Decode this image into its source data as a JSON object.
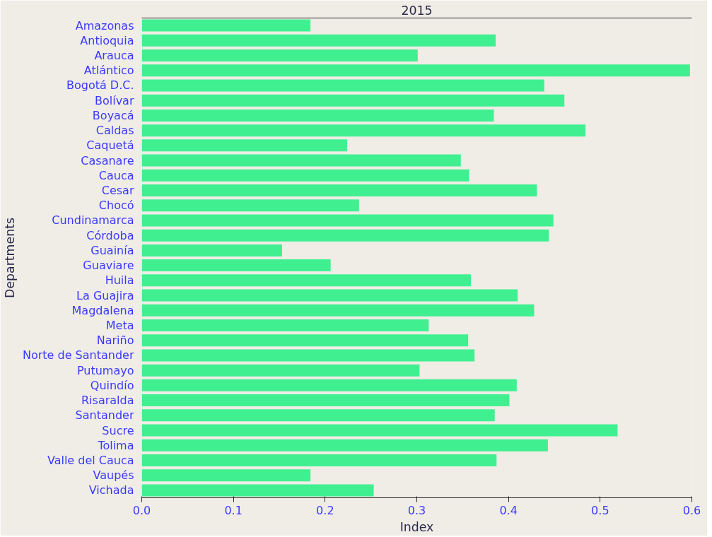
{
  "chart_data": {
    "type": "bar",
    "orientation": "horizontal",
    "title": "2015",
    "xlabel": "Index",
    "ylabel": "Departments",
    "categories": [
      "Amazonas",
      "Antioquia",
      "Arauca",
      "Atlántico",
      "Bogotá D.C.",
      "Bolívar",
      "Boyacá",
      "Caldas",
      "Caquetá",
      "Casanare",
      "Cauca",
      "Cesar",
      "Chocó",
      "Cundinamarca",
      "Córdoba",
      "Guainía",
      "Guaviare",
      "Huila",
      "La Guajira",
      "Magdalena",
      "Meta",
      "Nariño",
      "Norte de Santander",
      "Putumayo",
      "Quindío",
      "Risaralda",
      "Santander",
      "Sucre",
      "Tolima",
      "Valle del Cauca",
      "Vaupés",
      "Vichada"
    ],
    "values": [
      0.184,
      0.386,
      0.301,
      0.598,
      0.439,
      0.461,
      0.384,
      0.484,
      0.224,
      0.348,
      0.357,
      0.431,
      0.237,
      0.449,
      0.444,
      0.153,
      0.206,
      0.359,
      0.41,
      0.428,
      0.313,
      0.356,
      0.363,
      0.303,
      0.409,
      0.401,
      0.385,
      0.519,
      0.443,
      0.387,
      0.184,
      0.253
    ],
    "color": "#40f090",
    "xlim": [
      0,
      0.6
    ],
    "xticks": [
      {
        "value": 0,
        "label": "0.0"
      },
      0.1,
      0.2,
      0.3,
      0.4,
      0.5,
      0.6
    ],
    "grid": false
  }
}
